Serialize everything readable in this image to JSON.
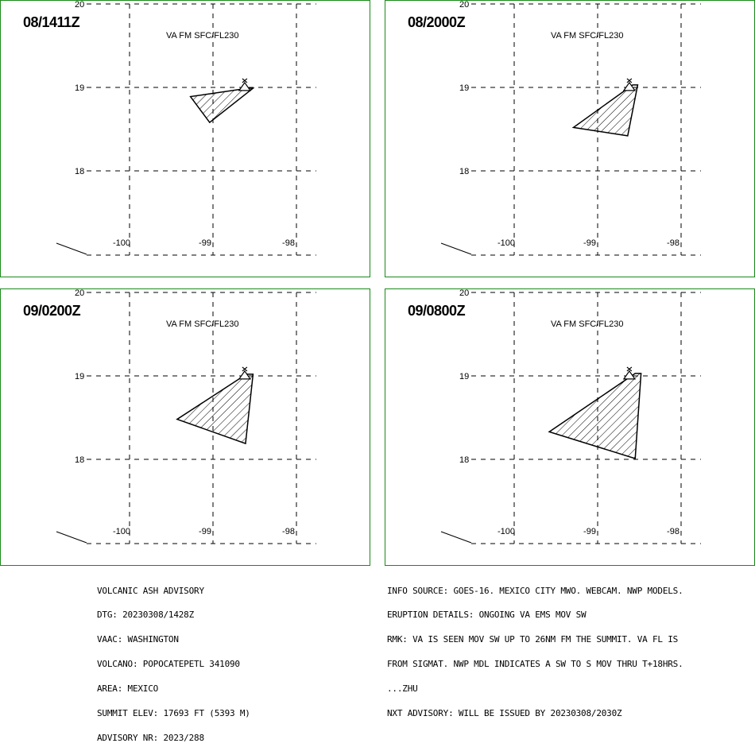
{
  "panels": [
    {
      "time": "08/1411Z",
      "level": "VA FM SFC/FL230",
      "polygon": [
        [
          -98.58,
          18.99
        ],
        [
          -99.27,
          18.89
        ],
        [
          -99.04,
          18.58
        ],
        [
          -98.52,
          18.99
        ]
      ]
    },
    {
      "time": "08/2000Z",
      "level": "VA FM SFC/FL230",
      "polygon": [
        [
          -98.58,
          19.03
        ],
        [
          -99.29,
          18.52
        ],
        [
          -98.64,
          18.42
        ],
        [
          -98.52,
          19.03
        ]
      ]
    },
    {
      "time": "09/0200Z",
      "level": "VA FM SFC/FL230",
      "polygon": [
        [
          -98.6,
          19.02
        ],
        [
          -99.43,
          18.48
        ],
        [
          -98.61,
          18.19
        ],
        [
          -98.52,
          19.02
        ]
      ]
    },
    {
      "time": "09/0800Z",
      "level": "VA FM SFC/FL230",
      "polygon": [
        [
          -98.55,
          19.03
        ],
        [
          -99.58,
          18.33
        ],
        [
          -98.55,
          18.01
        ],
        [
          -98.48,
          19.03
        ]
      ]
    }
  ],
  "axes": {
    "lat_ticks": [
      "20",
      "19",
      "18"
    ],
    "lon_ticks": [
      "-100",
      "-99",
      "-98"
    ],
    "lat_range": [
      17.0,
      20.0
    ],
    "lon_range": [
      -101.0,
      -97.5
    ]
  },
  "volcano": {
    "lon": -98.62,
    "lat": 19.02,
    "symbol": "volcano-icon"
  },
  "colors": {
    "border": "#1a8a1a",
    "ash": "#000000"
  },
  "advisory_left": [
    "VOLCANIC ASH ADVISORY",
    "DTG: 20230308/1428Z",
    "VAAC: WASHINGTON",
    "VOLCANO: POPOCATEPETL 341090",
    "AREA: MEXICO",
    "SUMMIT ELEV: 17693 FT (5393 M)",
    "ADVISORY NR: 2023/288"
  ],
  "advisory_right": [
    "INFO SOURCE: GOES-16. MEXICO CITY MWO. WEBCAM. NWP MODELS.",
    "ERUPTION DETAILS: ONGOING VA EMS MOV SW",
    "RMK: VA IS SEEN MOV SW UP TO 26NM FM THE SUMMIT. VA FL IS",
    "FROM SIGMAT. NWP MDL INDICATES A SW TO S MOV THRU T+18HRS.",
    "...ZHU",
    "NXT ADVISORY: WILL BE ISSUED BY 20230308/2030Z"
  ]
}
